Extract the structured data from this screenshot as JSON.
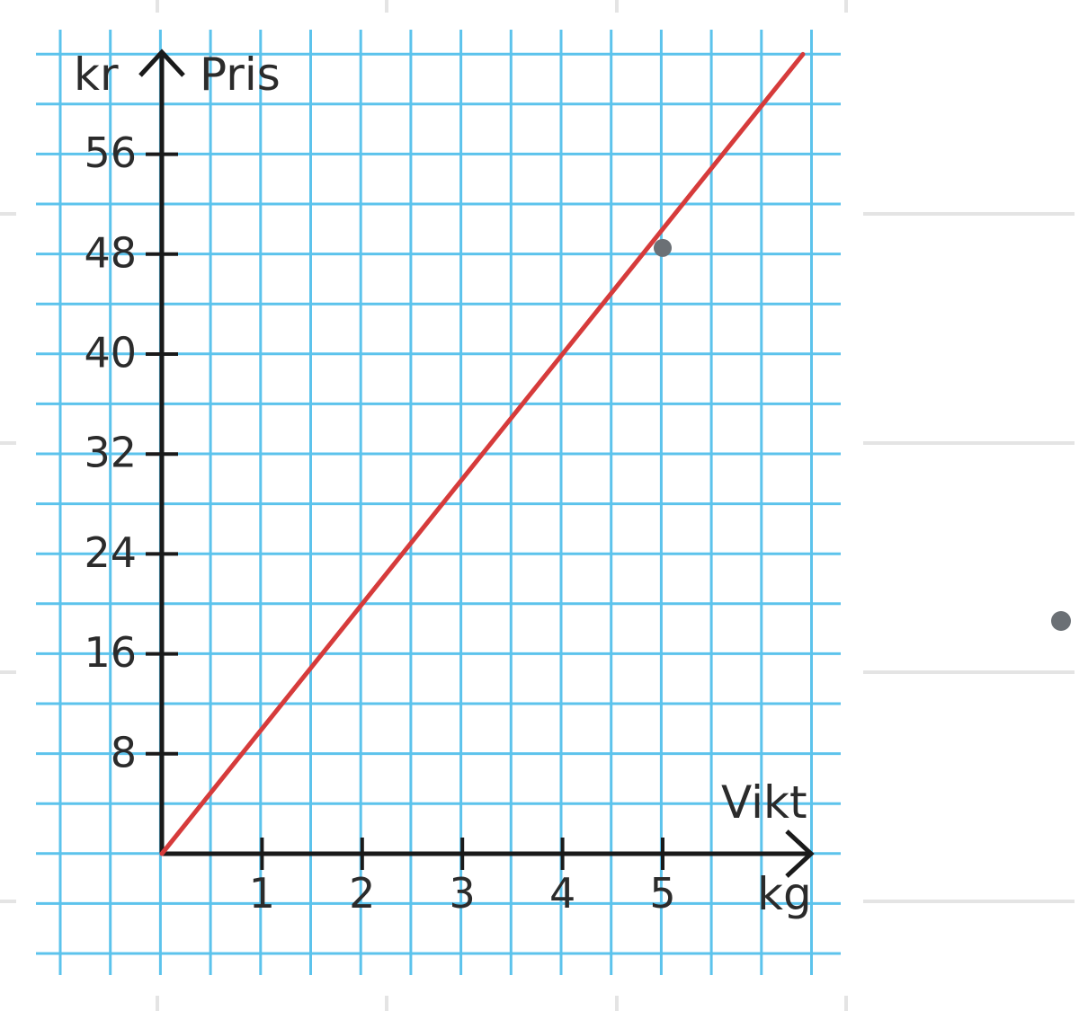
{
  "chart_data": {
    "type": "line",
    "title": "",
    "ylabel": "Pris",
    "yunit": "kr",
    "xlabel": "Vikt",
    "xunit": "kg",
    "xlim": [
      0,
      6.5
    ],
    "ylim": [
      0,
      60
    ],
    "grid": true,
    "x_ticks": [
      "1",
      "2",
      "3",
      "4",
      "5"
    ],
    "y_ticks": [
      "8",
      "16",
      "24",
      "32",
      "40",
      "48",
      "56"
    ],
    "series": [
      {
        "values": [
          {
            "x": 0,
            "y": 0
          },
          {
            "x": 6.4,
            "y": 64.0
          }
        ]
      }
    ],
    "points": [
      {
        "x": 5,
        "y": 48.5
      }
    ],
    "colors": {
      "line": "#d63b3b",
      "grid": "#5cc3ec",
      "axes": "#1a1a1a",
      "point": "#6b7075"
    }
  }
}
